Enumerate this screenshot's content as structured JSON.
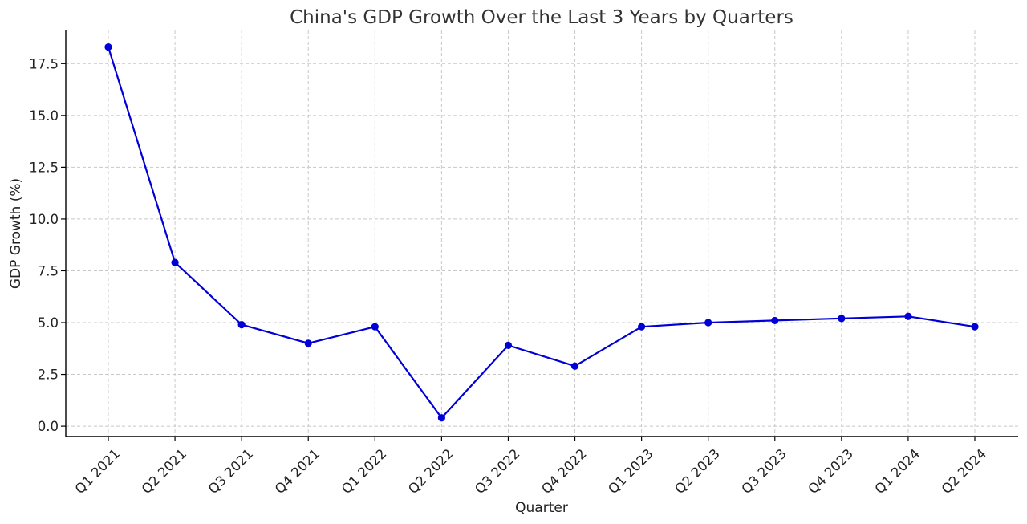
{
  "chart_data": {
    "type": "line",
    "title": "China's GDP Growth Over the Last 3 Years by Quarters",
    "xlabel": "Quarter",
    "ylabel": "GDP Growth (%)",
    "categories": [
      "Q1 2021",
      "Q2 2021",
      "Q3 2021",
      "Q4 2021",
      "Q1 2022",
      "Q2 2022",
      "Q3 2022",
      "Q4 2022",
      "Q1 2023",
      "Q2 2023",
      "Q3 2023",
      "Q4 2023",
      "Q1 2024",
      "Q2 2024"
    ],
    "series": [
      {
        "values": [
          18.3,
          7.9,
          4.9,
          4.0,
          4.8,
          0.4,
          3.9,
          2.9,
          4.8,
          5.0,
          5.1,
          5.2,
          5.3,
          4.8
        ],
        "color": "#0000d6"
      }
    ],
    "ylim": [
      -0.5,
      19.1
    ],
    "yticks": [
      "0.0",
      "2.5",
      "5.0",
      "7.5",
      "10.0",
      "12.5",
      "15.0",
      "17.5"
    ],
    "grid": true,
    "marker": "circle"
  }
}
